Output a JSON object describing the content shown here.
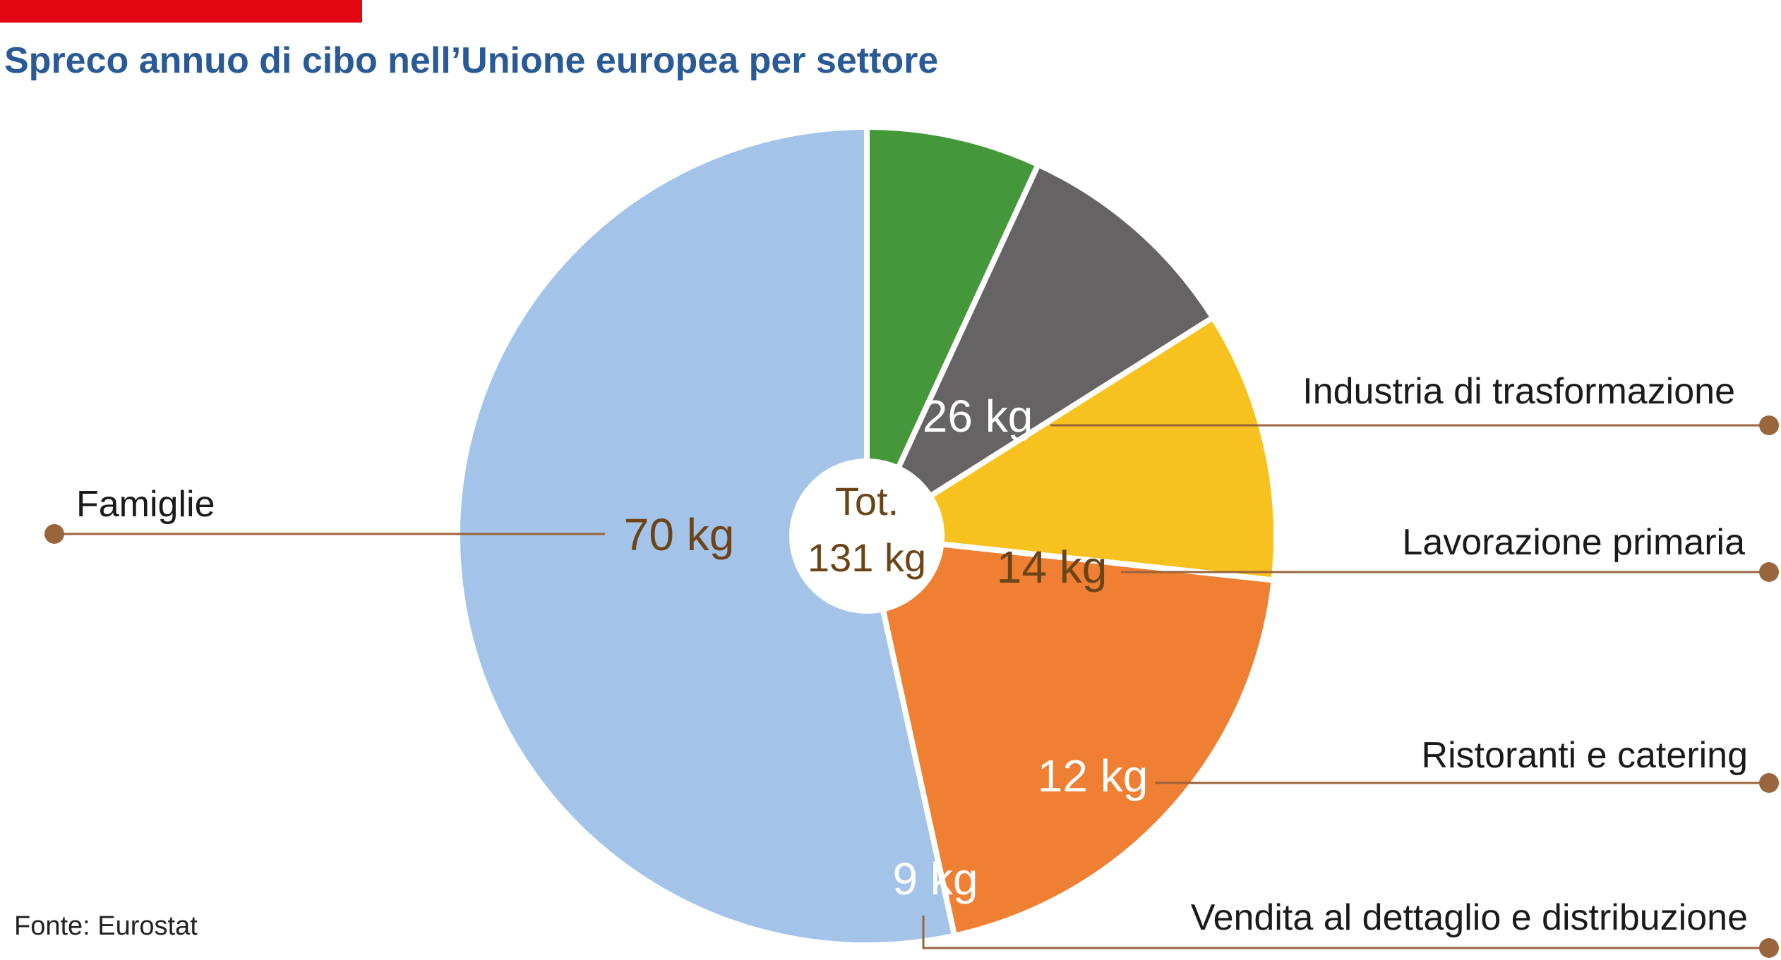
{
  "header": {
    "title": "Spreco annuo di cibo nell’Unione europea per settore",
    "accent_color": "#e30613"
  },
  "footer": {
    "source": "Fonte: Eurostat"
  },
  "chart_data": {
    "type": "pie",
    "unit": "kg",
    "total_line1": "Tot.",
    "total_line2": "131 kg",
    "start_angle_deg": 90,
    "direction": "counterclockwise",
    "slices": [
      {
        "label": "Famiglie",
        "value": 70,
        "value_label": "70 kg",
        "color": "#a3c3e8",
        "text_color": "#6b4418"
      },
      {
        "label": "Industria di trasformazione",
        "value": 26,
        "value_label": "26 kg",
        "color": "#ee7f33",
        "text_color": "#ffffff"
      },
      {
        "label": "Lavorazione primaria",
        "value": 14,
        "value_label": "14 kg",
        "color": "#f7c220",
        "text_color": "#6b4418"
      },
      {
        "label": "Ristoranti e catering",
        "value": 12,
        "value_label": "12 kg",
        "color": "#656363",
        "text_color": "#ffffff"
      },
      {
        "label": "Vendita al dettaglio e distribuzione",
        "value": 9,
        "value_label": "9 kg",
        "color": "#45983a",
        "text_color": "#ffffff"
      }
    ],
    "leader_color": "#9a643c"
  }
}
